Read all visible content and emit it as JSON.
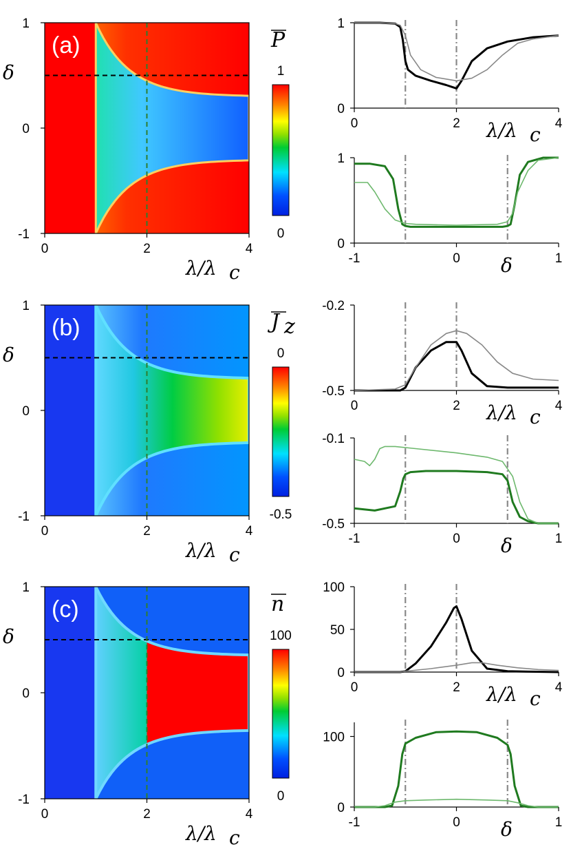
{
  "colors": {
    "black_line": "#000000",
    "gray_line": "#888888",
    "green_line": "#1f7a1f",
    "light_green_line": "#6db86d",
    "dashed_black": "#000000",
    "dashed_green": "#2e7d2e",
    "vline_gray": "#888888"
  },
  "chart_data": [
    {
      "id": "a-map",
      "type": "heatmap",
      "panel_label": "(a)",
      "colorbar_title": "P̄",
      "xlabel": "λ/λ_c",
      "ylabel": "δ",
      "xlim": [
        0,
        4
      ],
      "ylim": [
        -1,
        1
      ],
      "xticks": [
        "0",
        "2",
        "4"
      ],
      "yticks": [
        "1",
        "0",
        "-1"
      ],
      "colorbar": {
        "max_label": "1",
        "min_label": "0",
        "range": [
          0,
          1
        ]
      },
      "guides": {
        "horizontal_delta": 0.5,
        "vertical_lambda": 2
      },
      "regions": {
        "low_phase_start_lambda": 1.0,
        "boundary_edge_delta_at_4": 0.3,
        "outside_value": 1.0,
        "inside_value_range": [
          0.2,
          0.55
        ]
      }
    },
    {
      "id": "a-top",
      "type": "line",
      "xlabel": "λ/λ_c",
      "ylabel": "",
      "xlim": [
        0,
        4
      ],
      "ylim": [
        0,
        1
      ],
      "xticks": [
        "0",
        "2",
        "4"
      ],
      "yticks": [
        "1",
        "0"
      ],
      "vlines": [
        1,
        2
      ],
      "series": [
        {
          "style": "thick-black",
          "x": [
            0,
            0.5,
            0.8,
            0.9,
            0.95,
            1.0,
            1.05,
            1.2,
            1.5,
            1.8,
            1.95,
            2.0,
            2.1,
            2.3,
            2.6,
            3.0,
            3.5,
            4.0
          ],
          "y": [
            1,
            1,
            0.99,
            0.95,
            0.8,
            0.55,
            0.45,
            0.38,
            0.32,
            0.27,
            0.24,
            0.23,
            0.32,
            0.55,
            0.7,
            0.78,
            0.83,
            0.85
          ]
        },
        {
          "style": "thin-gray",
          "x": [
            0,
            0.5,
            0.8,
            0.9,
            1.0,
            1.1,
            1.3,
            1.6,
            2.0,
            2.3,
            2.6,
            2.9,
            3.2,
            3.5,
            4.0
          ],
          "y": [
            1,
            1,
            0.99,
            0.97,
            0.85,
            0.62,
            0.45,
            0.36,
            0.32,
            0.35,
            0.45,
            0.62,
            0.76,
            0.81,
            0.85
          ]
        }
      ]
    },
    {
      "id": "a-bottom",
      "type": "line",
      "xlabel": "δ",
      "ylabel": "",
      "xlim": [
        -1,
        1
      ],
      "ylim": [
        0,
        1
      ],
      "xticks": [
        "-1",
        "0",
        "1"
      ],
      "yticks": [
        "1",
        "0"
      ],
      "vlines": [
        -0.5,
        0.5
      ],
      "series": [
        {
          "style": "thick-green",
          "x": [
            -1,
            -0.85,
            -0.7,
            -0.62,
            -0.57,
            -0.53,
            -0.5,
            -0.45,
            0,
            0.45,
            0.5,
            0.53,
            0.57,
            0.62,
            0.7,
            0.85,
            1
          ],
          "y": [
            0.93,
            0.93,
            0.9,
            0.75,
            0.4,
            0.22,
            0.2,
            0.19,
            0.19,
            0.19,
            0.2,
            0.22,
            0.45,
            0.8,
            0.95,
            1,
            1
          ]
        },
        {
          "style": "thin-light-green",
          "x": [
            -1,
            -0.87,
            -0.8,
            -0.7,
            -0.6,
            -0.5,
            -0.4,
            0,
            0.4,
            0.5,
            0.55,
            0.6,
            0.7,
            0.8,
            1
          ],
          "y": [
            0.71,
            0.71,
            0.6,
            0.4,
            0.27,
            0.23,
            0.22,
            0.21,
            0.22,
            0.25,
            0.35,
            0.6,
            0.85,
            0.97,
            1
          ]
        }
      ]
    },
    {
      "id": "b-map",
      "type": "heatmap",
      "panel_label": "(b)",
      "colorbar_title": "J̄_z",
      "xlabel": "λ/λ_c",
      "ylabel": "δ",
      "xlim": [
        0,
        4
      ],
      "ylim": [
        -1,
        1
      ],
      "xticks": [
        "0",
        "2",
        "4"
      ],
      "yticks": [
        "1",
        "0",
        "-1"
      ],
      "colorbar": {
        "max_label": "0",
        "min_label": "-0.5",
        "range": [
          -0.5,
          0
        ]
      },
      "guides": {
        "horizontal_delta": 0.5,
        "vertical_lambda": 2
      },
      "regions": {
        "low_phase_start_lambda": 1.0,
        "boundary_edge_delta_at_4": 0.3,
        "outside_value": -0.5,
        "inside_value_range": [
          -0.42,
          -0.18
        ]
      }
    },
    {
      "id": "b-top",
      "type": "line",
      "xlabel": "λ/λ_c",
      "ylabel": "",
      "xlim": [
        0,
        4
      ],
      "ylim": [
        -0.5,
        -0.2
      ],
      "xticks": [
        "0",
        "2",
        "4"
      ],
      "yticks": [
        "-0.2",
        "-0.5"
      ],
      "vlines": [
        1,
        2
      ],
      "series": [
        {
          "style": "thick-black",
          "x": [
            0,
            0.9,
            1.0,
            1.2,
            1.5,
            1.8,
            2.0,
            2.1,
            2.3,
            2.6,
            3.0,
            3.5,
            4.0
          ],
          "y": [
            -0.5,
            -0.5,
            -0.49,
            -0.42,
            -0.36,
            -0.33,
            -0.33,
            -0.36,
            -0.44,
            -0.485,
            -0.49,
            -0.49,
            -0.49
          ]
        },
        {
          "style": "thin-gray",
          "x": [
            0,
            0.8,
            1.0,
            1.2,
            1.5,
            1.8,
            2.0,
            2.2,
            2.5,
            2.8,
            3.1,
            3.5,
            4.0
          ],
          "y": [
            -0.5,
            -0.495,
            -0.48,
            -0.42,
            -0.34,
            -0.3,
            -0.29,
            -0.3,
            -0.34,
            -0.4,
            -0.44,
            -0.46,
            -0.465
          ]
        }
      ]
    },
    {
      "id": "b-bottom",
      "type": "line",
      "xlabel": "δ",
      "ylabel": "",
      "xlim": [
        -1,
        1
      ],
      "ylim": [
        -0.5,
        -0.1
      ],
      "xticks": [
        "-1",
        "0",
        "1"
      ],
      "yticks": [
        "-0.1",
        "-0.5"
      ],
      "vlines": [
        -0.5,
        0.5
      ],
      "series": [
        {
          "style": "thick-green",
          "x": [
            -1,
            -0.8,
            -0.6,
            -0.55,
            -0.52,
            -0.5,
            -0.45,
            -0.3,
            0,
            0.3,
            0.45,
            0.5,
            0.55,
            0.62,
            0.7,
            0.8,
            1
          ],
          "y": [
            -0.43,
            -0.44,
            -0.42,
            -0.35,
            -0.29,
            -0.27,
            -0.26,
            -0.255,
            -0.255,
            -0.26,
            -0.27,
            -0.3,
            -0.4,
            -0.47,
            -0.49,
            -0.5,
            -0.5
          ]
        },
        {
          "style": "thin-light-green",
          "x": [
            -1,
            -0.9,
            -0.85,
            -0.8,
            -0.75,
            -0.7,
            -0.6,
            -0.4,
            0,
            0.3,
            0.45,
            0.55,
            0.62,
            0.7,
            0.8,
            1
          ],
          "y": [
            -0.2,
            -0.21,
            -0.23,
            -0.2,
            -0.15,
            -0.14,
            -0.14,
            -0.15,
            -0.17,
            -0.19,
            -0.21,
            -0.28,
            -0.4,
            -0.48,
            -0.5,
            -0.5
          ]
        }
      ]
    },
    {
      "id": "c-map",
      "type": "heatmap",
      "panel_label": "(c)",
      "colorbar_title": "n̄",
      "xlabel": "λ/λ_c",
      "ylabel": "δ",
      "xlim": [
        0,
        4
      ],
      "ylim": [
        -1,
        1
      ],
      "xticks": [
        "0",
        "2",
        "4"
      ],
      "yticks": [
        "1",
        "0",
        "-1"
      ],
      "colorbar": {
        "max_label": "100",
        "min_label": "0",
        "range": [
          0,
          100
        ]
      },
      "guides": {
        "horizontal_delta": 0.5,
        "vertical_lambda": 2
      },
      "regions": {
        "low_phase_start_lambda": 1.0,
        "saturated_start_lambda": 2.0,
        "boundary_edge_delta_at_4": 0.35,
        "outside_value": 0,
        "inside_value_range": [
          5,
          100
        ]
      }
    },
    {
      "id": "c-top",
      "type": "line",
      "xlabel": "λ/λ_c",
      "ylabel": "",
      "xlim": [
        0,
        4
      ],
      "ylim": [
        0,
        100
      ],
      "xticks": [
        "0",
        "2",
        "4"
      ],
      "yticks": [
        "100",
        "50",
        "0"
      ],
      "vlines": [
        1,
        2
      ],
      "series": [
        {
          "style": "thick-black",
          "x": [
            0,
            0.9,
            1.0,
            1.2,
            1.5,
            1.8,
            1.95,
            2.0,
            2.1,
            2.3,
            2.6,
            3.0,
            4.0
          ],
          "y": [
            0,
            0,
            1,
            10,
            30,
            58,
            75,
            77,
            62,
            25,
            4,
            1,
            0
          ]
        },
        {
          "style": "thin-gray",
          "x": [
            0,
            0.9,
            1.0,
            1.5,
            2.0,
            2.3,
            2.5,
            2.8,
            3.2,
            3.6,
            4.0
          ],
          "y": [
            0,
            0,
            1,
            4,
            8,
            11,
            11,
            8,
            5,
            3,
            2
          ]
        }
      ]
    },
    {
      "id": "c-bottom",
      "type": "line",
      "xlabel": "δ",
      "ylabel": "",
      "xlim": [
        -1,
        1
      ],
      "ylim": [
        0,
        120
      ],
      "xticks": [
        "-1",
        "0",
        "1"
      ],
      "yticks": [
        "100",
        "0"
      ],
      "vlines": [
        -0.5,
        0.5
      ],
      "series": [
        {
          "style": "thick-green",
          "x": [
            -1,
            -0.7,
            -0.63,
            -0.57,
            -0.53,
            -0.5,
            -0.4,
            -0.2,
            0,
            0.2,
            0.4,
            0.5,
            0.53,
            0.57,
            0.63,
            0.7,
            1
          ],
          "y": [
            0,
            0,
            2,
            30,
            75,
            90,
            98,
            106,
            107,
            106,
            98,
            88,
            75,
            30,
            2,
            0,
            0
          ]
        },
        {
          "style": "thin-light-green",
          "x": [
            -1,
            -0.8,
            -0.7,
            -0.6,
            -0.5,
            -0.3,
            0,
            0.3,
            0.5,
            0.6,
            0.7,
            0.8,
            1
          ],
          "y": [
            0,
            0,
            2,
            7,
            9,
            10,
            11,
            10,
            9,
            6,
            2,
            0,
            0
          ]
        }
      ]
    }
  ]
}
